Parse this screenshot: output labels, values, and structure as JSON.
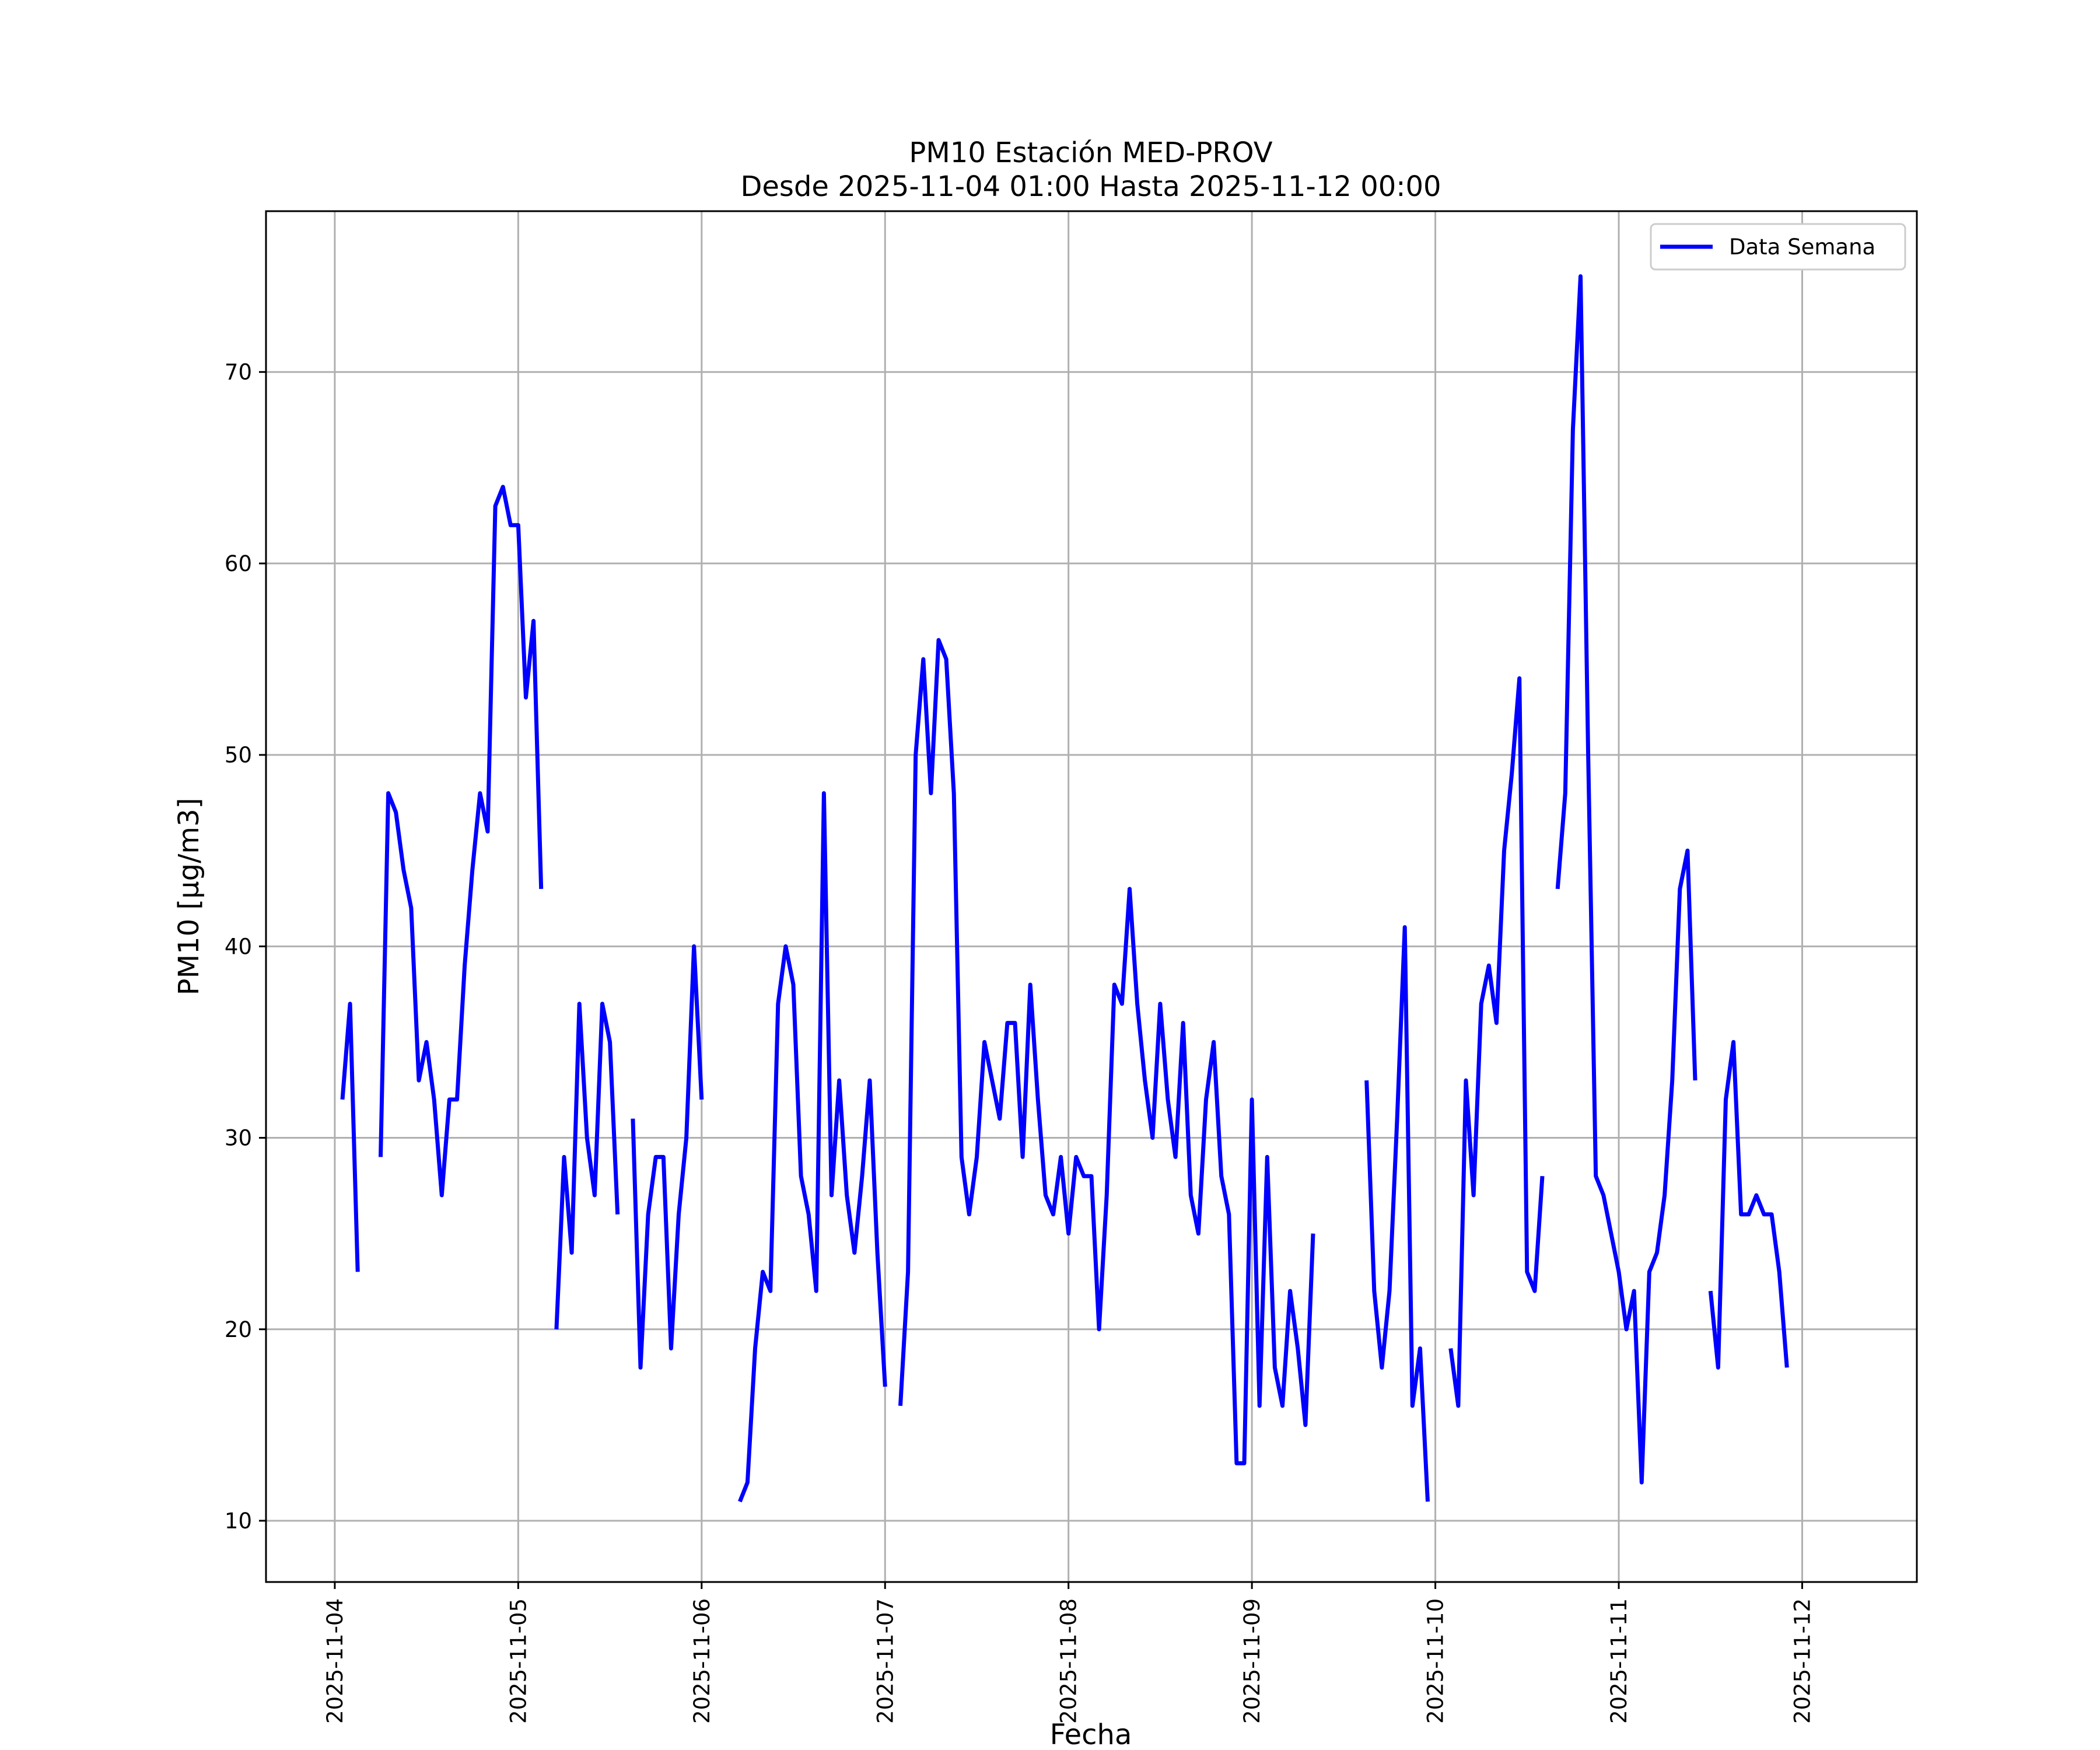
{
  "chart_data": {
    "type": "line",
    "title": "PM10 Estación MED-PROV",
    "subtitle": "Desde 2025-11-04 01:00 Hasta 2025-11-12 00:00",
    "xlabel": "Fecha",
    "ylabel": "PM10 [μg/m3]",
    "xlim": [
      "2025-11-03 15:00",
      "2025-11-12 15:00"
    ],
    "ylim": [
      6.8,
      78.4
    ],
    "xticks": [
      "2025-11-04",
      "2025-11-05",
      "2025-11-06",
      "2025-11-07",
      "2025-11-08",
      "2025-11-09",
      "2025-11-10",
      "2025-11-11",
      "2025-11-12"
    ],
    "yticks": [
      10,
      20,
      30,
      40,
      50,
      60,
      70
    ],
    "grid": true,
    "legend_position": "top-right",
    "series": [
      {
        "name": "Data Semana",
        "color": "#0000ff",
        "points": [
          [
            "2025-11-04 01:00",
            32
          ],
          [
            "2025-11-04 02:00",
            37
          ],
          [
            "2025-11-04 03:00",
            23
          ],
          [
            "2025-11-04 04:00",
            null
          ],
          [
            "2025-11-04 05:00",
            null
          ],
          [
            "2025-11-04 06:00",
            29
          ],
          [
            "2025-11-04 07:00",
            48
          ],
          [
            "2025-11-04 08:00",
            47
          ],
          [
            "2025-11-04 09:00",
            44
          ],
          [
            "2025-11-04 10:00",
            42
          ],
          [
            "2025-11-04 11:00",
            33
          ],
          [
            "2025-11-04 12:00",
            35
          ],
          [
            "2025-11-04 13:00",
            32
          ],
          [
            "2025-11-04 14:00",
            27
          ],
          [
            "2025-11-04 15:00",
            32
          ],
          [
            "2025-11-04 16:00",
            32
          ],
          [
            "2025-11-04 17:00",
            39
          ],
          [
            "2025-11-04 18:00",
            44
          ],
          [
            "2025-11-04 19:00",
            48
          ],
          [
            "2025-11-04 20:00",
            46
          ],
          [
            "2025-11-04 21:00",
            63
          ],
          [
            "2025-11-04 22:00",
            64
          ],
          [
            "2025-11-04 23:00",
            62
          ],
          [
            "2025-11-05 00:00",
            62
          ],
          [
            "2025-11-05 01:00",
            53
          ],
          [
            "2025-11-05 02:00",
            57
          ],
          [
            "2025-11-05 03:00",
            43
          ],
          [
            "2025-11-05 04:00",
            null
          ],
          [
            "2025-11-05 05:00",
            20
          ],
          [
            "2025-11-05 06:00",
            29
          ],
          [
            "2025-11-05 07:00",
            24
          ],
          [
            "2025-11-05 08:00",
            37
          ],
          [
            "2025-11-05 09:00",
            30
          ],
          [
            "2025-11-05 10:00",
            27
          ],
          [
            "2025-11-05 11:00",
            37
          ],
          [
            "2025-11-05 12:00",
            35
          ],
          [
            "2025-11-05 13:00",
            26
          ],
          [
            "2025-11-05 14:00",
            null
          ],
          [
            "2025-11-05 15:00",
            31
          ],
          [
            "2025-11-05 16:00",
            18
          ],
          [
            "2025-11-05 17:00",
            26
          ],
          [
            "2025-11-05 18:00",
            29
          ],
          [
            "2025-11-05 19:00",
            29
          ],
          [
            "2025-11-05 20:00",
            19
          ],
          [
            "2025-11-05 21:00",
            26
          ],
          [
            "2025-11-05 22:00",
            30
          ],
          [
            "2025-11-05 23:00",
            40
          ],
          [
            "2025-11-06 00:00",
            32
          ],
          [
            "2025-11-06 01:00",
            null
          ],
          [
            "2025-11-06 02:00",
            null
          ],
          [
            "2025-11-06 03:00",
            null
          ],
          [
            "2025-11-06 04:00",
            null
          ],
          [
            "2025-11-06 05:00",
            11
          ],
          [
            "2025-11-06 06:00",
            12
          ],
          [
            "2025-11-06 07:00",
            19
          ],
          [
            "2025-11-06 08:00",
            23
          ],
          [
            "2025-11-06 09:00",
            22
          ],
          [
            "2025-11-06 10:00",
            37
          ],
          [
            "2025-11-06 11:00",
            40
          ],
          [
            "2025-11-06 12:00",
            38
          ],
          [
            "2025-11-06 13:00",
            28
          ],
          [
            "2025-11-06 14:00",
            26
          ],
          [
            "2025-11-06 15:00",
            22
          ],
          [
            "2025-11-06 16:00",
            48
          ],
          [
            "2025-11-06 17:00",
            27
          ],
          [
            "2025-11-06 18:00",
            33
          ],
          [
            "2025-11-06 19:00",
            27
          ],
          [
            "2025-11-06 20:00",
            24
          ],
          [
            "2025-11-06 21:00",
            28
          ],
          [
            "2025-11-06 22:00",
            33
          ],
          [
            "2025-11-06 23:00",
            24
          ],
          [
            "2025-11-07 00:00",
            17
          ],
          [
            "2025-11-07 01:00",
            null
          ],
          [
            "2025-11-07 02:00",
            16
          ],
          [
            "2025-11-07 03:00",
            23
          ],
          [
            "2025-11-07 04:00",
            50
          ],
          [
            "2025-11-07 05:00",
            55
          ],
          [
            "2025-11-07 06:00",
            48
          ],
          [
            "2025-11-07 07:00",
            56
          ],
          [
            "2025-11-07 08:00",
            55
          ],
          [
            "2025-11-07 09:00",
            48
          ],
          [
            "2025-11-07 10:00",
            29
          ],
          [
            "2025-11-07 11:00",
            26
          ],
          [
            "2025-11-07 12:00",
            29
          ],
          [
            "2025-11-07 13:00",
            35
          ],
          [
            "2025-11-07 14:00",
            33
          ],
          [
            "2025-11-07 15:00",
            31
          ],
          [
            "2025-11-07 16:00",
            36
          ],
          [
            "2025-11-07 17:00",
            36
          ],
          [
            "2025-11-07 18:00",
            29
          ],
          [
            "2025-11-07 19:00",
            38
          ],
          [
            "2025-11-07 20:00",
            32
          ],
          [
            "2025-11-07 21:00",
            27
          ],
          [
            "2025-11-07 22:00",
            26
          ],
          [
            "2025-11-07 23:00",
            29
          ],
          [
            "2025-11-08 00:00",
            25
          ],
          [
            "2025-11-08 01:00",
            29
          ],
          [
            "2025-11-08 02:00",
            28
          ],
          [
            "2025-11-08 03:00",
            28
          ],
          [
            "2025-11-08 04:00",
            20
          ],
          [
            "2025-11-08 05:00",
            27
          ],
          [
            "2025-11-08 06:00",
            38
          ],
          [
            "2025-11-08 07:00",
            37
          ],
          [
            "2025-11-08 08:00",
            43
          ],
          [
            "2025-11-08 09:00",
            37
          ],
          [
            "2025-11-08 10:00",
            33
          ],
          [
            "2025-11-08 11:00",
            30
          ],
          [
            "2025-11-08 12:00",
            37
          ],
          [
            "2025-11-08 13:00",
            32
          ],
          [
            "2025-11-08 14:00",
            29
          ],
          [
            "2025-11-08 15:00",
            36
          ],
          [
            "2025-11-08 16:00",
            27
          ],
          [
            "2025-11-08 17:00",
            25
          ],
          [
            "2025-11-08 18:00",
            32
          ],
          [
            "2025-11-08 19:00",
            35
          ],
          [
            "2025-11-08 20:00",
            28
          ],
          [
            "2025-11-08 21:00",
            26
          ],
          [
            "2025-11-08 22:00",
            13
          ],
          [
            "2025-11-08 23:00",
            13
          ],
          [
            "2025-11-09 00:00",
            32
          ],
          [
            "2025-11-09 01:00",
            16
          ],
          [
            "2025-11-09 02:00",
            29
          ],
          [
            "2025-11-09 03:00",
            18
          ],
          [
            "2025-11-09 04:00",
            16
          ],
          [
            "2025-11-09 05:00",
            22
          ],
          [
            "2025-11-09 06:00",
            19
          ],
          [
            "2025-11-09 07:00",
            15
          ],
          [
            "2025-11-09 08:00",
            25
          ],
          [
            "2025-11-09 09:00",
            null
          ],
          [
            "2025-11-09 15:00",
            null
          ],
          [
            "2025-11-09 15:00",
            33
          ],
          [
            "2025-11-09 16:00",
            22
          ],
          [
            "2025-11-09 17:00",
            18
          ],
          [
            "2025-11-09 18:00",
            22
          ],
          [
            "2025-11-09 19:00",
            31
          ],
          [
            "2025-11-09 20:00",
            41
          ],
          [
            "2025-11-09 21:00",
            16
          ],
          [
            "2025-11-09 22:00",
            19
          ],
          [
            "2025-11-09 23:00",
            11
          ],
          [
            "2025-11-10 00:00",
            null
          ],
          [
            "2025-11-10 01:00",
            null
          ],
          [
            "2025-11-10 02:00",
            19
          ],
          [
            "2025-11-10 03:00",
            16
          ],
          [
            "2025-11-10 04:00",
            33
          ],
          [
            "2025-11-10 05:00",
            27
          ],
          [
            "2025-11-10 06:00",
            37
          ],
          [
            "2025-11-10 07:00",
            39
          ],
          [
            "2025-11-10 08:00",
            36
          ],
          [
            "2025-11-10 09:00",
            45
          ],
          [
            "2025-11-10 10:00",
            49
          ],
          [
            "2025-11-10 11:00",
            54
          ],
          [
            "2025-11-10 12:00",
            23
          ],
          [
            "2025-11-10 13:00",
            22
          ],
          [
            "2025-11-10 14:00",
            28
          ],
          [
            "2025-11-10 15:00",
            null
          ],
          [
            "2025-11-10 16:00",
            43
          ],
          [
            "2025-11-10 17:00",
            48
          ],
          [
            "2025-11-10 18:00",
            67
          ],
          [
            "2025-11-10 19:00",
            75
          ],
          [
            "2025-11-10 20:00",
            50
          ],
          [
            "2025-11-10 21:00",
            28
          ],
          [
            "2025-11-10 22:00",
            27
          ],
          [
            "2025-11-10 23:00",
            25
          ],
          [
            "2025-11-11 00:00",
            23
          ],
          [
            "2025-11-11 01:00",
            20
          ],
          [
            "2025-11-11 02:00",
            22
          ],
          [
            "2025-11-11 03:00",
            12
          ],
          [
            "2025-11-11 04:00",
            23
          ],
          [
            "2025-11-11 05:00",
            24
          ],
          [
            "2025-11-11 06:00",
            27
          ],
          [
            "2025-11-11 07:00",
            33
          ],
          [
            "2025-11-11 08:00",
            43
          ],
          [
            "2025-11-11 09:00",
            45
          ],
          [
            "2025-11-11 10:00",
            33
          ],
          [
            "2025-11-11 11:00",
            null
          ],
          [
            "2025-11-11 12:00",
            22
          ],
          [
            "2025-11-11 13:00",
            18
          ],
          [
            "2025-11-11 14:00",
            32
          ],
          [
            "2025-11-11 15:00",
            35
          ],
          [
            "2025-11-11 16:00",
            26
          ],
          [
            "2025-11-11 17:00",
            26
          ],
          [
            "2025-11-11 18:00",
            27
          ],
          [
            "2025-11-11 19:00",
            26
          ],
          [
            "2025-11-11 20:00",
            26
          ],
          [
            "2025-11-11 21:00",
            23
          ],
          [
            "2025-11-11 22:00",
            18
          ]
        ]
      }
    ]
  }
}
